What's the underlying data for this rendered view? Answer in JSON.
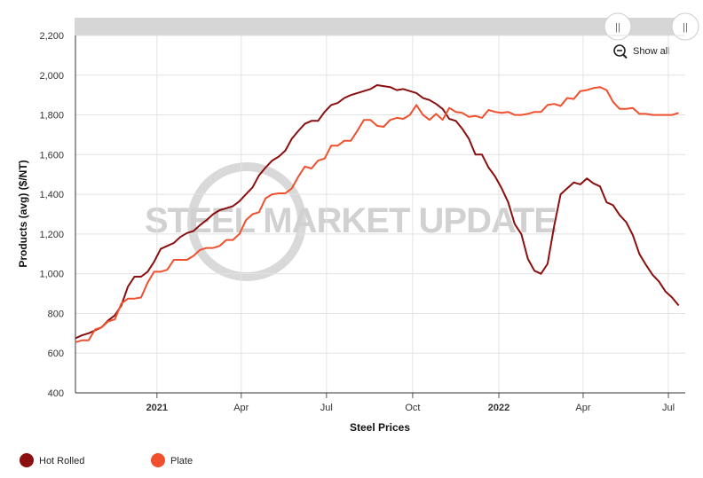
{
  "chart_data": {
    "type": "line",
    "title": "",
    "xlabel": "Steel Prices",
    "ylabel": "Products (avg) ($/NT)",
    "ylim": [
      400,
      2200
    ],
    "yticks": [
      400,
      600,
      800,
      1000,
      1200,
      1400,
      1600,
      1800,
      2000,
      2200
    ],
    "ytick_labels": [
      "400",
      "600",
      "800",
      "1,000",
      "1,200",
      "1,400",
      "1,600",
      "1,800",
      "2,000",
      "2,200"
    ],
    "xlim": [
      "2020-10-06",
      "2022-07-19"
    ],
    "xticks": [
      {
        "label": "2021",
        "date": "2021-01-01",
        "bold": true
      },
      {
        "label": "Apr",
        "date": "2021-04-01",
        "bold": false
      },
      {
        "label": "Jul",
        "date": "2021-07-01",
        "bold": false
      },
      {
        "label": "Oct",
        "date": "2021-10-01",
        "bold": false
      },
      {
        "label": "2022",
        "date": "2022-01-01",
        "bold": true
      },
      {
        "label": "Apr",
        "date": "2022-04-01",
        "bold": false
      },
      {
        "label": "Jul",
        "date": "2022-07-01",
        "bold": false
      }
    ],
    "grid": true,
    "legend_position": "bottom-left",
    "watermark": "STEEL MARKET UPDATE",
    "series": [
      {
        "name": "Hot Rolled",
        "color": "#8b0f0f",
        "points": [
          [
            "2020-10-06",
            675
          ],
          [
            "2020-10-13",
            690
          ],
          [
            "2020-10-20",
            700
          ],
          [
            "2020-10-27",
            715
          ],
          [
            "2020-11-03",
            730
          ],
          [
            "2020-11-10",
            765
          ],
          [
            "2020-11-17",
            790
          ],
          [
            "2020-11-24",
            840
          ],
          [
            "2020-12-01",
            935
          ],
          [
            "2020-12-08",
            985
          ],
          [
            "2020-12-15",
            985
          ],
          [
            "2020-12-22",
            1010
          ],
          [
            "2020-12-29",
            1060
          ],
          [
            "2021-01-05",
            1125
          ],
          [
            "2021-01-12",
            1140
          ],
          [
            "2021-01-19",
            1155
          ],
          [
            "2021-01-26",
            1185
          ],
          [
            "2021-02-02",
            1205
          ],
          [
            "2021-02-09",
            1215
          ],
          [
            "2021-02-16",
            1245
          ],
          [
            "2021-02-23",
            1270
          ],
          [
            "2021-03-02",
            1300
          ],
          [
            "2021-03-09",
            1320
          ],
          [
            "2021-03-16",
            1330
          ],
          [
            "2021-03-23",
            1340
          ],
          [
            "2021-03-30",
            1365
          ],
          [
            "2021-04-06",
            1400
          ],
          [
            "2021-04-13",
            1435
          ],
          [
            "2021-04-20",
            1495
          ],
          [
            "2021-04-27",
            1535
          ],
          [
            "2021-05-04",
            1570
          ],
          [
            "2021-05-11",
            1590
          ],
          [
            "2021-05-18",
            1620
          ],
          [
            "2021-05-25",
            1680
          ],
          [
            "2021-06-01",
            1720
          ],
          [
            "2021-06-08",
            1755
          ],
          [
            "2021-06-15",
            1770
          ],
          [
            "2021-06-22",
            1770
          ],
          [
            "2021-06-29",
            1815
          ],
          [
            "2021-07-06",
            1850
          ],
          [
            "2021-07-13",
            1860
          ],
          [
            "2021-07-20",
            1885
          ],
          [
            "2021-07-27",
            1900
          ],
          [
            "2021-08-03",
            1910
          ],
          [
            "2021-08-10",
            1920
          ],
          [
            "2021-08-17",
            1930
          ],
          [
            "2021-08-24",
            1950
          ],
          [
            "2021-08-31",
            1945
          ],
          [
            "2021-09-07",
            1940
          ],
          [
            "2021-09-14",
            1925
          ],
          [
            "2021-09-21",
            1930
          ],
          [
            "2021-09-28",
            1920
          ],
          [
            "2021-10-05",
            1910
          ],
          [
            "2021-10-12",
            1885
          ],
          [
            "2021-10-19",
            1875
          ],
          [
            "2021-10-26",
            1855
          ],
          [
            "2021-11-02",
            1830
          ],
          [
            "2021-11-09",
            1780
          ],
          [
            "2021-11-16",
            1770
          ],
          [
            "2021-11-23",
            1730
          ],
          [
            "2021-11-30",
            1680
          ],
          [
            "2021-12-07",
            1600
          ],
          [
            "2021-12-14",
            1600
          ],
          [
            "2021-12-21",
            1535
          ],
          [
            "2021-12-28",
            1490
          ],
          [
            "2022-01-04",
            1430
          ],
          [
            "2022-01-11",
            1360
          ],
          [
            "2022-01-18",
            1250
          ],
          [
            "2022-01-25",
            1200
          ],
          [
            "2022-02-01",
            1075
          ],
          [
            "2022-02-08",
            1015
          ],
          [
            "2022-02-15",
            1000
          ],
          [
            "2022-02-22",
            1050
          ],
          [
            "2022-03-01",
            1240
          ],
          [
            "2022-03-08",
            1400
          ],
          [
            "2022-03-15",
            1430
          ],
          [
            "2022-03-22",
            1460
          ],
          [
            "2022-03-29",
            1450
          ],
          [
            "2022-04-05",
            1480
          ],
          [
            "2022-04-12",
            1455
          ],
          [
            "2022-04-19",
            1440
          ],
          [
            "2022-04-26",
            1360
          ],
          [
            "2022-05-03",
            1345
          ],
          [
            "2022-05-10",
            1295
          ],
          [
            "2022-05-17",
            1260
          ],
          [
            "2022-05-24",
            1195
          ],
          [
            "2022-05-31",
            1100
          ],
          [
            "2022-06-07",
            1045
          ],
          [
            "2022-06-14",
            995
          ],
          [
            "2022-06-21",
            960
          ],
          [
            "2022-06-28",
            910
          ],
          [
            "2022-07-05",
            880
          ],
          [
            "2022-07-12",
            840
          ]
        ]
      },
      {
        "name": "Plate",
        "color": "#f0502d",
        "points": [
          [
            "2020-10-06",
            655
          ],
          [
            "2020-10-13",
            665
          ],
          [
            "2020-10-20",
            665
          ],
          [
            "2020-10-27",
            720
          ],
          [
            "2020-11-03",
            730
          ],
          [
            "2020-11-10",
            760
          ],
          [
            "2020-11-17",
            770
          ],
          [
            "2020-11-24",
            850
          ],
          [
            "2020-12-01",
            875
          ],
          [
            "2020-12-08",
            875
          ],
          [
            "2020-12-15",
            880
          ],
          [
            "2020-12-22",
            955
          ],
          [
            "2020-12-29",
            1010
          ],
          [
            "2021-01-05",
            1010
          ],
          [
            "2021-01-12",
            1020
          ],
          [
            "2021-01-19",
            1070
          ],
          [
            "2021-01-26",
            1070
          ],
          [
            "2021-02-02",
            1070
          ],
          [
            "2021-02-09",
            1090
          ],
          [
            "2021-02-16",
            1120
          ],
          [
            "2021-02-23",
            1130
          ],
          [
            "2021-03-02",
            1130
          ],
          [
            "2021-03-09",
            1140
          ],
          [
            "2021-03-16",
            1170
          ],
          [
            "2021-03-23",
            1170
          ],
          [
            "2021-03-30",
            1200
          ],
          [
            "2021-04-06",
            1270
          ],
          [
            "2021-04-13",
            1300
          ],
          [
            "2021-04-20",
            1310
          ],
          [
            "2021-04-27",
            1380
          ],
          [
            "2021-05-04",
            1400
          ],
          [
            "2021-05-11",
            1405
          ],
          [
            "2021-05-18",
            1405
          ],
          [
            "2021-05-25",
            1430
          ],
          [
            "2021-06-01",
            1490
          ],
          [
            "2021-06-08",
            1540
          ],
          [
            "2021-06-15",
            1530
          ],
          [
            "2021-06-22",
            1570
          ],
          [
            "2021-06-29",
            1580
          ],
          [
            "2021-07-06",
            1645
          ],
          [
            "2021-07-13",
            1645
          ],
          [
            "2021-07-20",
            1670
          ],
          [
            "2021-07-27",
            1670
          ],
          [
            "2021-08-03",
            1720
          ],
          [
            "2021-08-10",
            1775
          ],
          [
            "2021-08-17",
            1775
          ],
          [
            "2021-08-24",
            1745
          ],
          [
            "2021-08-31",
            1740
          ],
          [
            "2021-09-07",
            1775
          ],
          [
            "2021-09-14",
            1785
          ],
          [
            "2021-09-21",
            1780
          ],
          [
            "2021-09-28",
            1800
          ],
          [
            "2021-10-05",
            1850
          ],
          [
            "2021-10-12",
            1800
          ],
          [
            "2021-10-19",
            1775
          ],
          [
            "2021-10-26",
            1805
          ],
          [
            "2021-11-02",
            1775
          ],
          [
            "2021-11-09",
            1835
          ],
          [
            "2021-11-16",
            1815
          ],
          [
            "2021-11-23",
            1810
          ],
          [
            "2021-11-30",
            1790
          ],
          [
            "2021-12-07",
            1795
          ],
          [
            "2021-12-14",
            1785
          ],
          [
            "2021-12-21",
            1825
          ],
          [
            "2021-12-28",
            1815
          ],
          [
            "2022-01-04",
            1810
          ],
          [
            "2022-01-11",
            1815
          ],
          [
            "2022-01-18",
            1800
          ],
          [
            "2022-01-25",
            1800
          ],
          [
            "2022-02-01",
            1805
          ],
          [
            "2022-02-08",
            1815
          ],
          [
            "2022-02-15",
            1815
          ],
          [
            "2022-02-22",
            1850
          ],
          [
            "2022-03-01",
            1855
          ],
          [
            "2022-03-08",
            1845
          ],
          [
            "2022-03-15",
            1885
          ],
          [
            "2022-03-22",
            1880
          ],
          [
            "2022-03-29",
            1920
          ],
          [
            "2022-04-05",
            1925
          ],
          [
            "2022-04-12",
            1935
          ],
          [
            "2022-04-19",
            1940
          ],
          [
            "2022-04-26",
            1925
          ],
          [
            "2022-05-03",
            1865
          ],
          [
            "2022-05-10",
            1830
          ],
          [
            "2022-05-17",
            1830
          ],
          [
            "2022-05-24",
            1835
          ],
          [
            "2022-05-31",
            1805
          ],
          [
            "2022-06-07",
            1805
          ],
          [
            "2022-06-14",
            1800
          ],
          [
            "2022-06-21",
            1800
          ],
          [
            "2022-06-28",
            1800
          ],
          [
            "2022-07-05",
            1800
          ],
          [
            "2022-07-12",
            1810
          ]
        ]
      }
    ]
  },
  "controls": {
    "show_all_label": "Show all",
    "navigator_handle_glyph": "||"
  },
  "legend": {
    "items": [
      {
        "label": "Hot Rolled",
        "color": "#8b0f0f"
      },
      {
        "label": "Plate",
        "color": "#f0502d"
      }
    ]
  },
  "icons": {
    "zoom_out": "zoom-out-icon"
  }
}
